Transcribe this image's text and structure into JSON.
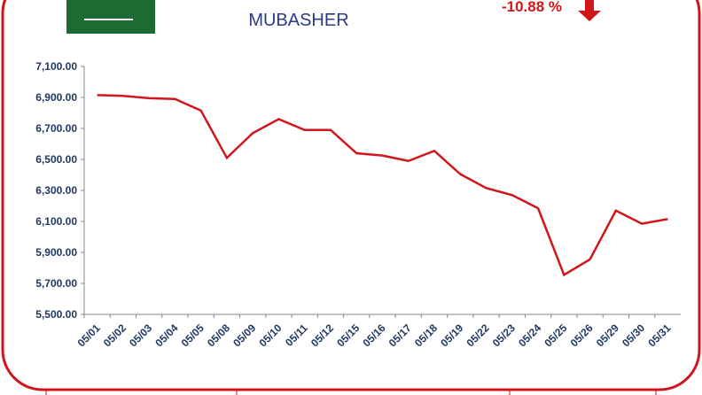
{
  "header": {
    "logo": "MUBASHER",
    "change": "-10.88 %"
  },
  "chart_data": {
    "type": "line",
    "categories": [
      "05/01",
      "05/02",
      "05/03",
      "05/04",
      "05/05",
      "05/08",
      "05/09",
      "05/10",
      "05/11",
      "05/12",
      "05/15",
      "05/16",
      "05/17",
      "05/18",
      "05/19",
      "05/22",
      "05/23",
      "05/24",
      "05/25",
      "05/26",
      "05/29",
      "05/30",
      "05/31"
    ],
    "series": [
      {
        "color": "#d0161b",
        "values": [
          6915,
          6910,
          6895,
          6890,
          6815,
          6510,
          6670,
          6760,
          6690,
          6690,
          6540,
          6525,
          6490,
          6555,
          6405,
          6315,
          6270,
          6185,
          5755,
          5855,
          6170,
          6085,
          6115
        ]
      }
    ],
    "ylim": [
      5500,
      7100
    ],
    "yticks": [
      {
        "value": 5500,
        "label": "5,500.00"
      },
      {
        "value": 5700,
        "label": "5,700.00"
      },
      {
        "value": 5900,
        "label": "5,900.00"
      },
      {
        "value": 6100,
        "label": "6,100.00"
      },
      {
        "value": 6300,
        "label": "6,300.00"
      },
      {
        "value": 6500,
        "label": "6,500.00"
      },
      {
        "value": 6700,
        "label": "6,700.00"
      },
      {
        "value": 6900,
        "label": "6,900.00"
      },
      {
        "value": 7100,
        "label": "7,100.00"
      }
    ]
  }
}
